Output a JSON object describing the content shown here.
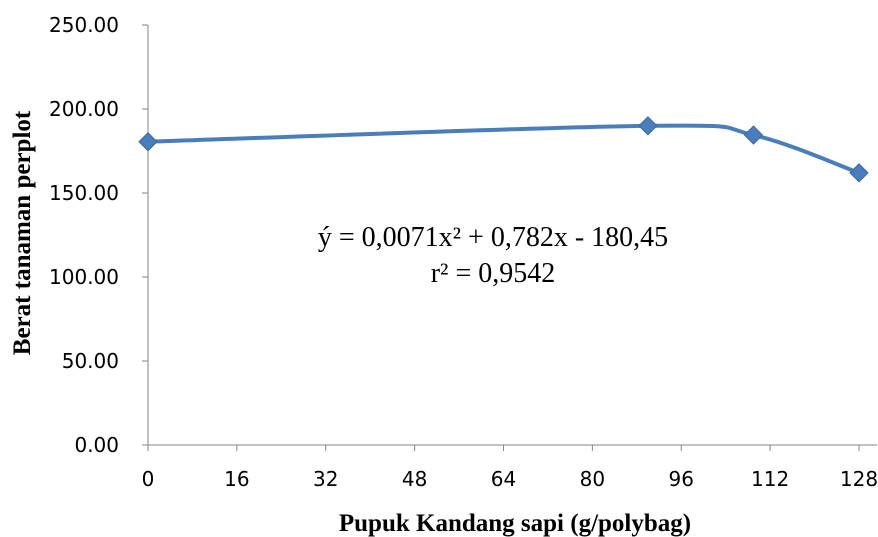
{
  "chart_data": {
    "type": "line",
    "xlabel": "Pupuk Kandang sapi (g/polybag)",
    "ylabel": "Berat tanaman perplot",
    "xlim": [
      0,
      128
    ],
    "ylim": [
      0,
      250
    ],
    "x_ticks": [
      "0",
      "16",
      "32",
      "48",
      "64",
      "80",
      "96",
      "112",
      "128"
    ],
    "y_ticks": [
      "0.00",
      "50.00",
      "100.00",
      "150.00",
      "200.00",
      "250.00"
    ],
    "series": [
      {
        "x": [
          0,
          90,
          109,
          128
        ],
        "y": [
          180.5,
          190,
          184.5,
          162
        ],
        "color": "#4a7ebb",
        "marker": "diamond",
        "smooth": true
      }
    ],
    "annotations": [
      "ý = 0,0071x² + 0,782x - 180,45",
      "r² = 0,9542"
    ],
    "grid": false,
    "legend": "none"
  }
}
